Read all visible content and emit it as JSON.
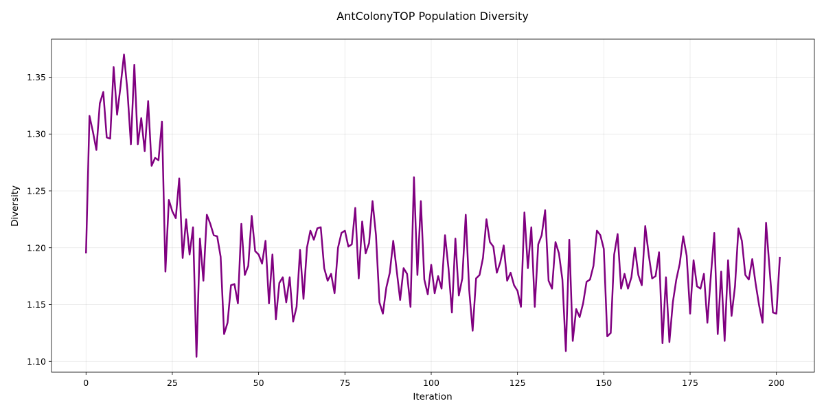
{
  "chart_data": {
    "type": "line",
    "title": "AntColonyTOP Population Diversity",
    "xlabel": "Iteration",
    "ylabel": "Diversity",
    "xlim": [
      -10,
      211
    ],
    "ylim": [
      1.0905,
      1.3835
    ],
    "xticks": [
      0,
      25,
      50,
      75,
      100,
      125,
      150,
      175,
      200
    ],
    "yticks": [
      1.1,
      1.15,
      1.2,
      1.25,
      1.3,
      1.35
    ],
    "ytick_labels": [
      "1.10",
      "1.15",
      "1.20",
      "1.25",
      "1.30",
      "1.35"
    ],
    "grid": true,
    "line_color": "#800080",
    "series": [
      {
        "x": [
          0,
          1,
          2,
          3,
          4,
          5,
          6,
          7,
          8,
          9,
          10,
          11,
          12,
          13,
          14,
          15,
          16,
          17,
          18,
          19,
          20,
          21,
          22,
          23,
          24,
          25,
          26,
          27,
          28,
          29,
          30,
          31,
          32,
          33,
          34,
          35,
          36,
          37,
          38,
          39,
          40,
          41,
          42,
          43,
          44,
          45,
          46,
          47,
          48,
          49,
          50,
          51,
          52,
          53,
          54,
          55,
          56,
          57,
          58,
          59,
          60,
          61,
          62,
          63,
          64,
          65,
          66,
          67,
          68,
          69,
          70,
          71,
          72,
          73,
          74,
          75,
          76,
          77,
          78,
          79,
          80,
          81,
          82,
          83,
          84,
          85,
          86,
          87,
          88,
          89,
          90,
          91,
          92,
          93,
          94,
          95,
          96,
          97,
          98,
          99,
          100,
          101,
          102,
          103,
          104,
          105,
          106,
          107,
          108,
          109,
          110,
          111,
          112,
          113,
          114,
          115,
          116,
          117,
          118,
          119,
          120,
          121,
          122,
          123,
          124,
          125,
          126,
          127,
          128,
          129,
          130,
          131,
          132,
          133,
          134,
          135,
          136,
          137,
          138,
          139,
          140,
          141,
          142,
          143,
          144,
          145,
          146,
          147,
          148,
          149,
          150,
          151,
          152,
          153,
          154,
          155,
          156,
          157,
          158,
          159,
          160,
          161,
          162,
          163,
          164,
          165,
          166,
          167,
          168,
          169,
          170,
          171,
          172,
          173,
          174,
          175,
          176,
          177,
          178,
          179,
          180,
          181,
          182,
          183,
          184,
          185,
          186,
          187,
          188,
          189,
          190,
          191,
          192,
          193,
          194,
          195,
          196,
          197,
          198,
          199,
          200,
          201
        ],
        "values": [
          1.195,
          1.316,
          1.302,
          1.286,
          1.327,
          1.337,
          1.297,
          1.296,
          1.359,
          1.317,
          1.342,
          1.37,
          1.338,
          1.291,
          1.361,
          1.291,
          1.314,
          1.285,
          1.329,
          1.272,
          1.279,
          1.277,
          1.311,
          1.179,
          1.242,
          1.232,
          1.226,
          1.261,
          1.191,
          1.225,
          1.194,
          1.218,
          1.104,
          1.208,
          1.171,
          1.229,
          1.221,
          1.211,
          1.21,
          1.192,
          1.124,
          1.134,
          1.167,
          1.168,
          1.151,
          1.221,
          1.176,
          1.184,
          1.228,
          1.197,
          1.194,
          1.186,
          1.206,
          1.151,
          1.194,
          1.137,
          1.169,
          1.174,
          1.152,
          1.174,
          1.135,
          1.148,
          1.198,
          1.155,
          1.2,
          1.215,
          1.207,
          1.217,
          1.218,
          1.182,
          1.171,
          1.177,
          1.16,
          1.2,
          1.213,
          1.215,
          1.201,
          1.203,
          1.235,
          1.173,
          1.223,
          1.195,
          1.204,
          1.241,
          1.211,
          1.152,
          1.142,
          1.165,
          1.178,
          1.206,
          1.18,
          1.154,
          1.182,
          1.177,
          1.148,
          1.262,
          1.176,
          1.241,
          1.172,
          1.159,
          1.185,
          1.16,
          1.175,
          1.164,
          1.211,
          1.182,
          1.143,
          1.208,
          1.158,
          1.173,
          1.229,
          1.163,
          1.127,
          1.173,
          1.176,
          1.191,
          1.225,
          1.205,
          1.201,
          1.178,
          1.187,
          1.202,
          1.171,
          1.178,
          1.167,
          1.162,
          1.148,
          1.231,
          1.182,
          1.218,
          1.148,
          1.203,
          1.211,
          1.233,
          1.171,
          1.164,
          1.205,
          1.195,
          1.172,
          1.109,
          1.207,
          1.118,
          1.146,
          1.139,
          1.151,
          1.17,
          1.172,
          1.184,
          1.215,
          1.211,
          1.199,
          1.122,
          1.125,
          1.194,
          1.212,
          1.164,
          1.177,
          1.164,
          1.174,
          1.2,
          1.176,
          1.167,
          1.219,
          1.194,
          1.173,
          1.175,
          1.196,
          1.116,
          1.174,
          1.117,
          1.152,
          1.172,
          1.186,
          1.21,
          1.193,
          1.142,
          1.189,
          1.166,
          1.164,
          1.177,
          1.134,
          1.175,
          1.213,
          1.124,
          1.179,
          1.118,
          1.189,
          1.14,
          1.166,
          1.217,
          1.206,
          1.176,
          1.172,
          1.19,
          1.168,
          1.149,
          1.134,
          1.222,
          1.182,
          1.143,
          1.142,
          1.192
        ]
      }
    ]
  }
}
